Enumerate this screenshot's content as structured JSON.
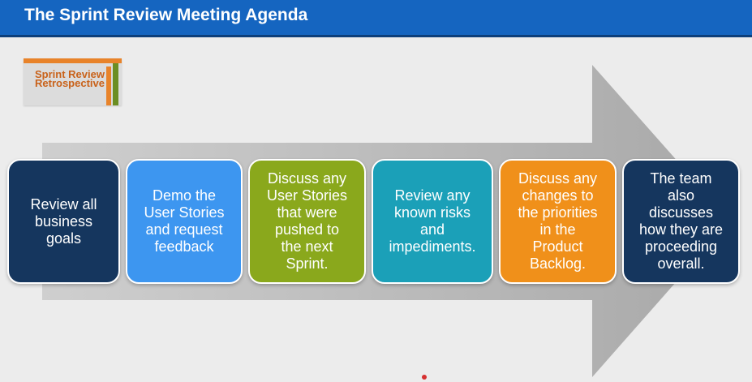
{
  "slide": {
    "title": "The Sprint Review Meeting Agenda",
    "logo_text": "Sprint Review\nRetrospective"
  },
  "colors": {
    "title_bar": "#1565c0",
    "arrow": "#b5b5b5",
    "card_navy": "#15365e",
    "card_blue": "#3d96f0",
    "card_green": "#8aa81c",
    "card_teal": "#1ba0b8",
    "card_orange": "#f0901a"
  },
  "agenda_items": [
    {
      "text": "Review all\nbusiness\ngoals",
      "color": "card_navy"
    },
    {
      "text": "Demo the\nUser Stories\nand request\nfeedback",
      "color": "card_blue"
    },
    {
      "text": "Discuss any\nUser Stories\nthat were\npushed to\nthe next\nSprint.",
      "color": "card_green"
    },
    {
      "text": "Review any\nknown risks\nand\nimpediments.",
      "color": "card_teal"
    },
    {
      "text": "Discuss any\nchanges to\nthe priorities\nin the\nProduct\nBacklog.",
      "color": "card_orange"
    },
    {
      "text": "The team\nalso\ndiscusses\nhow they are\nproceeding\noverall.",
      "color": "card_navy"
    }
  ]
}
